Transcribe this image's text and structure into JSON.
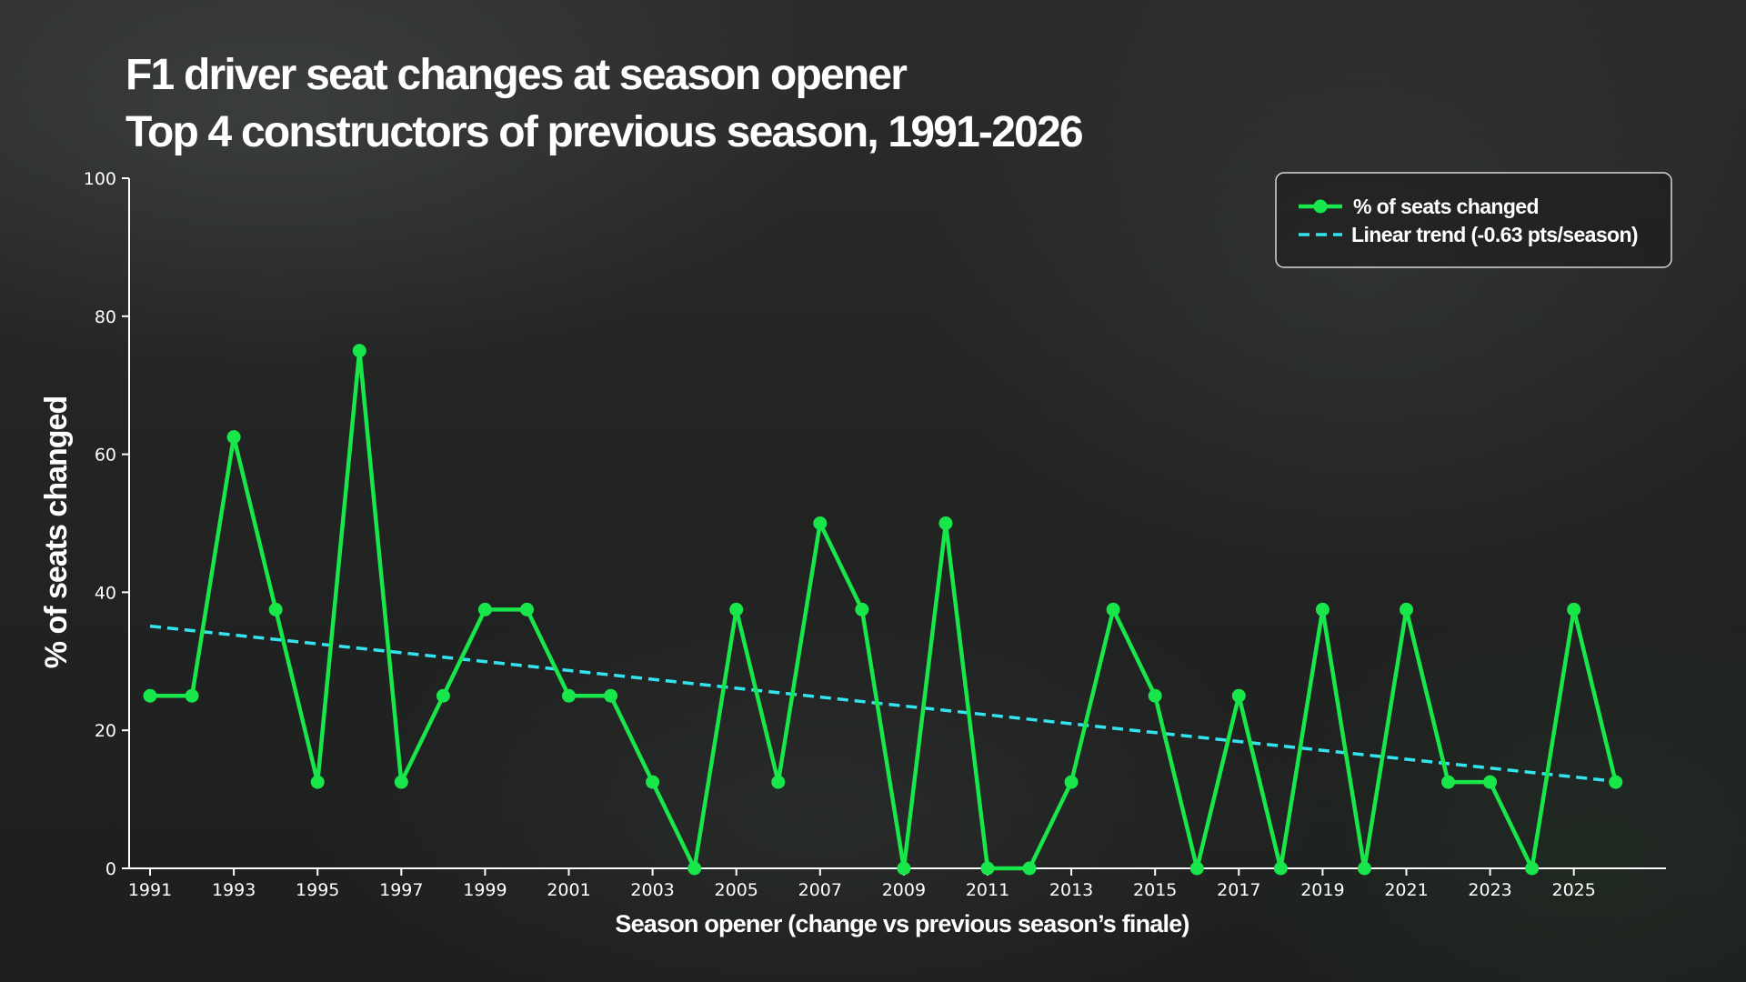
{
  "chart_data": {
    "type": "line",
    "title": [
      "F1 driver seat changes at season opener",
      "Top 4 constructors of previous season, 1991-2026"
    ],
    "xlabel": "Season opener (change vs previous season’s finale)",
    "ylabel": "% of seats changed",
    "ylim": [
      0,
      100
    ],
    "yticks": [
      0,
      20,
      40,
      60,
      80,
      100
    ],
    "xlim": [
      1990.5,
      2027.2
    ],
    "xticks": [
      1991,
      1993,
      1995,
      1997,
      1999,
      2001,
      2003,
      2005,
      2007,
      2009,
      2011,
      2013,
      2015,
      2017,
      2019,
      2021,
      2023,
      2025
    ],
    "grid": false,
    "legend_position": "top-right",
    "series": [
      {
        "name": "% of seats changed",
        "color": "#19e64a",
        "marker": "circle",
        "x": [
          1991,
          1992,
          1993,
          1994,
          1995,
          1996,
          1997,
          1998,
          1999,
          2000,
          2001,
          2002,
          2003,
          2004,
          2005,
          2006,
          2007,
          2008,
          2009,
          2010,
          2011,
          2012,
          2013,
          2014,
          2015,
          2016,
          2017,
          2018,
          2019,
          2020,
          2021,
          2022,
          2023,
          2024,
          2025,
          2026
        ],
        "y": [
          25,
          25,
          62.5,
          37.5,
          12.5,
          75,
          12.5,
          25,
          37.5,
          37.5,
          25,
          25,
          12.5,
          0,
          37.5,
          12.5,
          50,
          37.5,
          0,
          50,
          0,
          0,
          12.5,
          37.5,
          25,
          0,
          25,
          0,
          37.5,
          0,
          37.5,
          12.5,
          12.5,
          0,
          37.5,
          12.5
        ]
      },
      {
        "name": "Linear trend (-0.63 pts/season)",
        "color": "#33e4ee",
        "style": "dashed",
        "x": [
          1991,
          2026
        ],
        "y": [
          35.1,
          12.6
        ]
      }
    ]
  }
}
